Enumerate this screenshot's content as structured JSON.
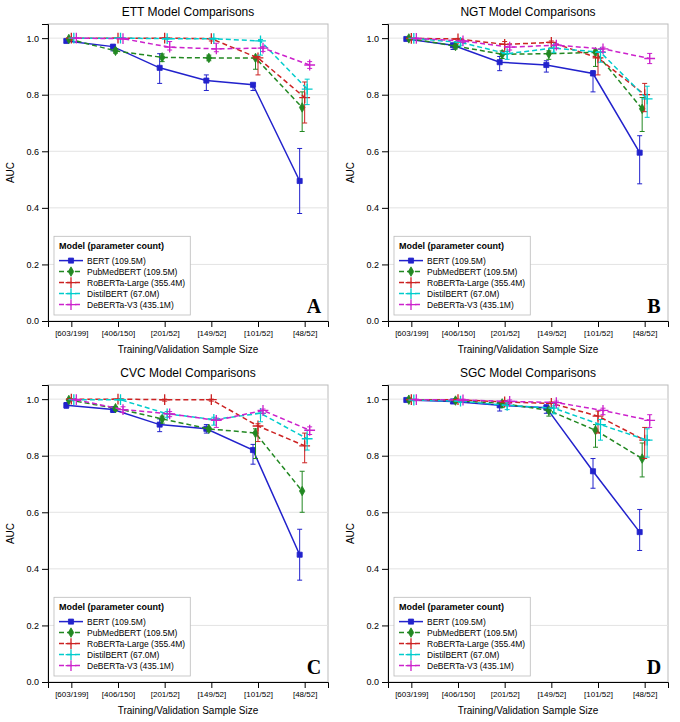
{
  "chart_data": [
    {
      "type": "line",
      "title": "ETT Model Comparisons",
      "annotations": [
        "A"
      ],
      "x_label": "Training/Validation Sample Size",
      "y_label": "AUC",
      "categories": [
        "[603/199]",
        "[406/150]",
        "[201/52]",
        "[149/52]",
        "[101/52]",
        "[48/52]"
      ],
      "ylim": [
        0.0,
        1.05
      ],
      "yticks": [
        {
          "value": 0.0,
          "label": "0.0"
        },
        0.2,
        0.4,
        0.6,
        0.8,
        {
          "value": 1.0,
          "label": "1.0"
        }
      ],
      "grid": true,
      "legend": "lower left",
      "legend_title": "Model (parameter count)",
      "series": [
        {
          "name": "BERT (109.5M)",
          "color": "#2222cc",
          "line_style": "solid",
          "marker": "square",
          "values": [
            0.99,
            0.97,
            0.895,
            0.85,
            0.835,
            0.495
          ],
          "error_lo": [
            0.005,
            0.015,
            0.055,
            0.035,
            0.02,
            0.115
          ],
          "error_hi": [
            0.005,
            0.005,
            0.05,
            0.02,
            0.005,
            0.115
          ]
        },
        {
          "name": "PubMedBERT (109.5M)",
          "color": "#228822",
          "line_style": "dashed",
          "marker": "diamond",
          "values": [
            0.997,
            0.955,
            0.932,
            0.93,
            0.93,
            0.755
          ],
          "error_lo": [
            0.002,
            0.008,
            0.015,
            0.01,
            0.04,
            0.085
          ],
          "error_hi": [
            0.002,
            0.008,
            0.012,
            0.01,
            0.005,
            0.055
          ]
        },
        {
          "name": "RoBERTa-Large (355.4M)",
          "color": "#cc2222",
          "line_style": "dashed",
          "marker": "plus",
          "values": [
            1.0,
            1.0,
            1.0,
            0.998,
            0.93,
            0.79
          ],
          "error_lo": [
            0.0,
            0.0,
            0.0,
            0.008,
            0.06,
            0.09
          ],
          "error_hi": [
            0.0,
            0.0,
            0.0,
            0.002,
            0.005,
            0.055
          ]
        },
        {
          "name": "DistilBERT (67.0M)",
          "color": "#00cccc",
          "line_style": "dashed",
          "marker": "plus",
          "values": [
            1.0,
            1.0,
            0.998,
            0.998,
            0.99,
            0.82
          ],
          "error_lo": [
            0.0,
            0.0,
            0.002,
            0.002,
            0.05,
            0.055
          ],
          "error_hi": [
            0.0,
            0.0,
            0.002,
            0.002,
            0.005,
            0.035
          ]
        },
        {
          "name": "DeBERTa-V3 (435.1M)",
          "color": "#cc22cc",
          "line_style": "dashed",
          "marker": "plus",
          "values": [
            1.0,
            0.998,
            0.968,
            0.962,
            0.965,
            0.905
          ],
          "error_lo": [
            0.0,
            0.002,
            0.01,
            0.01,
            0.012,
            0.012
          ],
          "error_hi": [
            0.0,
            0.002,
            0.02,
            0.02,
            0.005,
            0.012
          ]
        }
      ]
    },
    {
      "type": "line",
      "title": "NGT Model Comparisons",
      "annotations": [
        "B"
      ],
      "x_label": "Training/Validation Sample Size",
      "y_label": "AUC",
      "categories": [
        "[603/199]",
        "[406/150]",
        "[201/52]",
        "[149/52]",
        "[101/52]",
        "[48/52]"
      ],
      "ylim": [
        0.0,
        1.05
      ],
      "yticks": [
        {
          "value": 0.0,
          "label": "0.0"
        },
        0.2,
        0.4,
        0.6,
        0.8,
        {
          "value": 1.0,
          "label": "1.0"
        }
      ],
      "grid": true,
      "legend": "lower left",
      "legend_title": "Model (parameter count)",
      "series": [
        {
          "name": "BERT (109.5M)",
          "color": "#2222cc",
          "line_style": "solid",
          "marker": "square",
          "values": [
            0.997,
            0.975,
            0.915,
            0.905,
            0.875,
            0.595
          ],
          "error_lo": [
            0.003,
            0.015,
            0.03,
            0.025,
            0.065,
            0.11
          ],
          "error_hi": [
            0.003,
            0.005,
            0.02,
            0.015,
            0.01,
            0.06
          ]
        },
        {
          "name": "PubMedBERT (109.5M)",
          "color": "#228822",
          "line_style": "dashed",
          "marker": "diamond",
          "values": [
            0.999,
            0.972,
            0.943,
            0.945,
            0.95,
            0.75
          ],
          "error_lo": [
            0.001,
            0.01,
            0.015,
            0.02,
            0.05,
            0.08
          ],
          "error_hi": [
            0.001,
            0.005,
            0.012,
            0.01,
            0.008,
            0.04
          ]
        },
        {
          "name": "RoBERTa-Large (355.4M)",
          "color": "#cc2222",
          "line_style": "dashed",
          "marker": "plus",
          "values": [
            0.999,
            0.997,
            0.978,
            0.985,
            0.93,
            0.8
          ],
          "error_lo": [
            0.001,
            0.005,
            0.025,
            0.02,
            0.06,
            0.06
          ],
          "error_hi": [
            0.001,
            0.002,
            0.01,
            0.005,
            0.02,
            0.04
          ]
        },
        {
          "name": "DistilBERT (67.0M)",
          "color": "#00cccc",
          "line_style": "dashed",
          "marker": "plus",
          "values": [
            0.999,
            0.985,
            0.945,
            0.965,
            0.95,
            0.785
          ],
          "error_lo": [
            0.001,
            0.01,
            0.02,
            0.015,
            0.035,
            0.065
          ],
          "error_hi": [
            0.001,
            0.005,
            0.008,
            0.008,
            0.01,
            0.045
          ]
        },
        {
          "name": "DeBERTa-V3 (435.1M)",
          "color": "#cc22cc",
          "line_style": "dashed",
          "marker": "plus",
          "values": [
            0.999,
            0.99,
            0.968,
            0.975,
            0.962,
            0.928
          ],
          "error_lo": [
            0.001,
            0.005,
            0.01,
            0.012,
            0.01,
            0.018
          ],
          "error_hi": [
            0.001,
            0.002,
            0.008,
            0.005,
            0.006,
            0.018
          ]
        }
      ]
    },
    {
      "type": "line",
      "title": "CVC Model Comparisons",
      "annotations": [
        "C"
      ],
      "x_label": "Training/Validation Sample Size",
      "y_label": "AUC",
      "categories": [
        "[603/199]",
        "[406/150]",
        "[201/52]",
        "[149/52]",
        "[101/52]",
        "[48/52]"
      ],
      "ylim": [
        0.0,
        1.05
      ],
      "yticks": [
        {
          "value": 0.0,
          "label": "0.0"
        },
        0.2,
        0.4,
        0.6,
        0.8,
        {
          "value": 1.0,
          "label": "1.0"
        }
      ],
      "grid": true,
      "legend": "lower left",
      "legend_title": "Model (parameter count)",
      "series": [
        {
          "name": "BERT (109.5M)",
          "color": "#2222cc",
          "line_style": "solid",
          "marker": "square",
          "values": [
            0.978,
            0.963,
            0.91,
            0.895,
            0.82,
            0.45
          ],
          "error_lo": [
            0.01,
            0.01,
            0.025,
            0.015,
            0.05,
            0.09
          ],
          "error_hi": [
            0.01,
            0.01,
            0.02,
            0.015,
            0.02,
            0.09
          ]
        },
        {
          "name": "PubMedBERT (109.5M)",
          "color": "#228822",
          "line_style": "dashed",
          "marker": "diamond",
          "values": [
            0.997,
            0.968,
            0.93,
            0.895,
            0.88,
            0.675
          ],
          "error_lo": [
            0.002,
            0.008,
            0.015,
            0.01,
            0.09,
            0.075
          ],
          "error_hi": [
            0.002,
            0.005,
            0.01,
            0.005,
            0.015,
            0.07
          ]
        },
        {
          "name": "RoBERTa-Large (355.4M)",
          "color": "#cc2222",
          "line_style": "dashed",
          "marker": "plus",
          "values": [
            1.0,
            1.0,
            0.998,
            0.998,
            0.905,
            0.835
          ],
          "error_lo": [
            0.0,
            0.0,
            0.005,
            0.005,
            0.055,
            0.06
          ],
          "error_hi": [
            0.0,
            0.0,
            0.002,
            0.002,
            0.008,
            0.045
          ]
        },
        {
          "name": "DistilBERT (67.0M)",
          "color": "#00cccc",
          "line_style": "dashed",
          "marker": "plus",
          "values": [
            0.998,
            0.998,
            0.948,
            0.928,
            0.95,
            0.86
          ],
          "error_lo": [
            0.002,
            0.002,
            0.012,
            0.02,
            0.03,
            0.04
          ],
          "error_hi": [
            0.002,
            0.002,
            0.008,
            0.008,
            0.005,
            0.03
          ]
        },
        {
          "name": "DeBERTa-V3 (435.1M)",
          "color": "#cc22cc",
          "line_style": "dashed",
          "marker": "plus",
          "values": [
            0.998,
            0.963,
            0.948,
            0.925,
            0.96,
            0.89
          ],
          "error_lo": [
            0.002,
            0.01,
            0.01,
            0.025,
            0.01,
            0.015
          ],
          "error_hi": [
            0.002,
            0.01,
            0.008,
            0.008,
            0.005,
            0.012
          ]
        }
      ]
    },
    {
      "type": "line",
      "title": "SGC Model Comparisons",
      "annotations": [
        "D"
      ],
      "x_label": "Training/Validation Sample Size",
      "y_label": "AUC",
      "categories": [
        "[603/199]",
        "[406/150]",
        "[201/52]",
        "[149/52]",
        "[101/52]",
        "[48/52]"
      ],
      "ylim": [
        0.0,
        1.05
      ],
      "yticks": [
        {
          "value": 0.0,
          "label": "0.0"
        },
        0.2,
        0.4,
        0.6,
        0.8,
        {
          "value": 1.0,
          "label": "1.0"
        }
      ],
      "grid": true,
      "legend": "lower left",
      "legend_title": "Model (parameter count)",
      "series": [
        {
          "name": "BERT (109.5M)",
          "color": "#2222cc",
          "line_style": "solid",
          "marker": "square",
          "values": [
            0.997,
            0.992,
            0.978,
            0.97,
            0.745,
            0.53
          ],
          "error_lo": [
            0.003,
            0.008,
            0.02,
            0.02,
            0.06,
            0.065
          ],
          "error_hi": [
            0.003,
            0.005,
            0.012,
            0.01,
            0.045,
            0.08
          ]
        },
        {
          "name": "PubMedBERT (109.5M)",
          "color": "#228822",
          "line_style": "dashed",
          "marker": "diamond",
          "values": [
            0.998,
            0.995,
            0.985,
            0.96,
            0.89,
            0.79
          ],
          "error_lo": [
            0.002,
            0.005,
            0.015,
            0.02,
            0.06,
            0.065
          ],
          "error_hi": [
            0.002,
            0.005,
            0.008,
            0.01,
            0.02,
            0.055
          ]
        },
        {
          "name": "RoBERTa-Large (355.4M)",
          "color": "#cc2222",
          "line_style": "dashed",
          "marker": "plus",
          "values": [
            0.998,
            0.998,
            0.99,
            0.985,
            0.94,
            0.855
          ],
          "error_lo": [
            0.002,
            0.002,
            0.01,
            0.015,
            0.06,
            0.065
          ],
          "error_hi": [
            0.002,
            0.002,
            0.005,
            0.005,
            0.018,
            0.045
          ]
        },
        {
          "name": "DistilBERT (67.0M)",
          "color": "#00cccc",
          "line_style": "dashed",
          "marker": "plus",
          "values": [
            0.997,
            0.993,
            0.978,
            0.968,
            0.91,
            0.855
          ],
          "error_lo": [
            0.003,
            0.005,
            0.015,
            0.02,
            0.055,
            0.06
          ],
          "error_hi": [
            0.003,
            0.005,
            0.008,
            0.008,
            0.018,
            0.04
          ]
        },
        {
          "name": "DeBERTa-V3 (435.1M)",
          "color": "#cc22cc",
          "line_style": "dashed",
          "marker": "plus",
          "values": [
            0.998,
            0.997,
            0.992,
            0.988,
            0.96,
            0.925
          ],
          "error_lo": [
            0.002,
            0.003,
            0.008,
            0.01,
            0.015,
            0.025
          ],
          "error_hi": [
            0.002,
            0.003,
            0.005,
            0.005,
            0.008,
            0.02
          ]
        }
      ]
    }
  ]
}
